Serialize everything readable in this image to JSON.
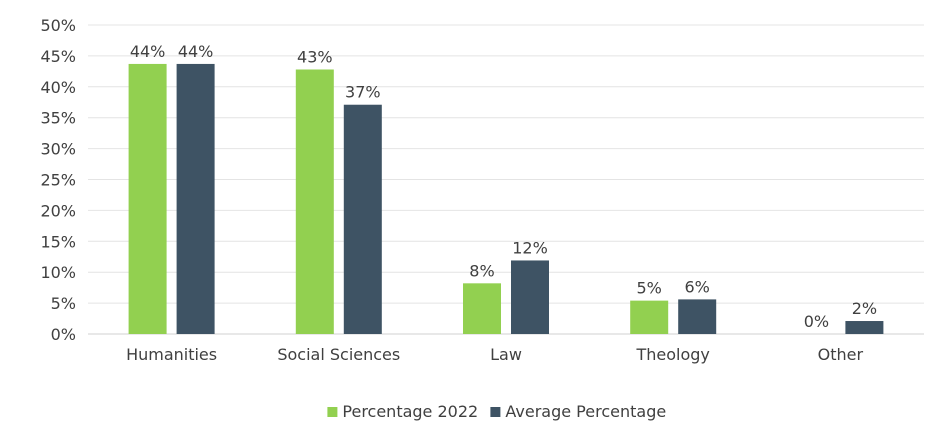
{
  "chart_data": {
    "type": "bar",
    "title": "",
    "xlabel": "",
    "ylabel": "",
    "ylim": [
      0,
      50
    ],
    "yticks": [
      "0%",
      "5%",
      "10%",
      "15%",
      "20%",
      "25%",
      "30%",
      "35%",
      "40%",
      "45%",
      "50%"
    ],
    "grid": true,
    "legend_position": "bottom",
    "categories": [
      "Humanities",
      "Social Sciences",
      "Law",
      "Theology",
      "Other"
    ],
    "series": [
      {
        "name": "Percentage 2022",
        "color": "#92D050",
        "values": [
          43.7,
          42.8,
          8.2,
          5.4,
          0
        ],
        "labels": [
          "44%",
          "43%",
          "8%",
          "5%",
          "0%"
        ]
      },
      {
        "name": "Average Percentage",
        "color": "#3E5364",
        "values": [
          43.7,
          37.1,
          11.9,
          5.6,
          2.1
        ],
        "labels": [
          "44%",
          "37%",
          "12%",
          "6%",
          "2%"
        ]
      }
    ]
  }
}
